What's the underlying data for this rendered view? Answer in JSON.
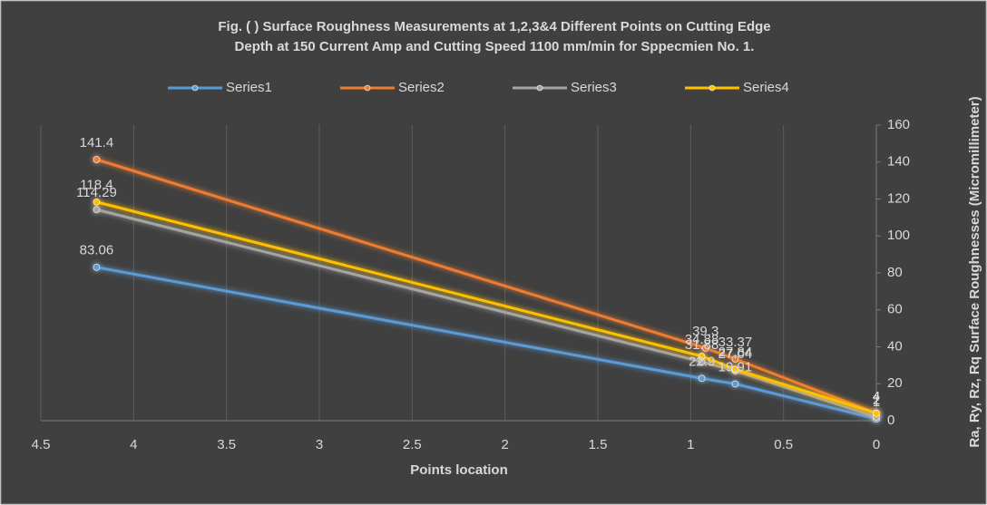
{
  "chart_data": {
    "type": "line",
    "title": [
      "Fig. ( ) Surface Roughness Measurements at 1,2,3&4 Different Points on Cutting Edge",
      "Depth at 150 Current Amp and  Cutting Speed 1100 mm/min for Sppecmien No. 1."
    ],
    "x_label": "Points location",
    "y_label": "Ra, Ry, Rz, Rq Surface Roughnesses (Micromillimeter)",
    "xlim": [
      4.5,
      0
    ],
    "xticks": [
      4.5,
      4,
      3.5,
      3,
      2.5,
      2,
      1.5,
      1,
      0.5,
      0
    ],
    "ylim": [
      0,
      160
    ],
    "yticks": [
      0,
      20,
      40,
      60,
      80,
      100,
      120,
      140,
      160
    ],
    "y_axis_side": "right",
    "grid": true,
    "legend": "top",
    "series": [
      {
        "name": "Series1",
        "color": "#5b9bd5",
        "x": [
          4.2,
          0.94,
          0.76,
          0
        ],
        "values": [
          83.06,
          22.9,
          19.91,
          1
        ]
      },
      {
        "name": "Series2",
        "color": "#ed7d31",
        "x": [
          4.2,
          0.92,
          0.76,
          0
        ],
        "values": [
          141.4,
          39.3,
          33.37,
          4
        ]
      },
      {
        "name": "Series3",
        "color": "#a5a5a5",
        "x": [
          4.2,
          0.94,
          0.76,
          0
        ],
        "values": [
          114.29,
          31.88,
          27.04,
          2
        ]
      },
      {
        "name": "Series4",
        "color": "#ffc000",
        "x": [
          4.2,
          0.94,
          0.76,
          0
        ],
        "values": [
          118.4,
          34.88,
          27.84,
          4
        ]
      }
    ]
  }
}
